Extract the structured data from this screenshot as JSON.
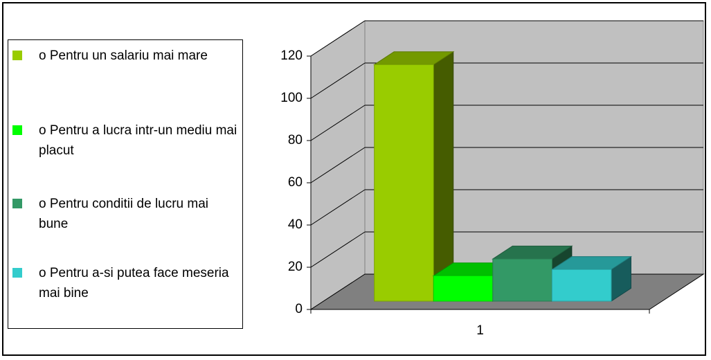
{
  "chart_data": {
    "type": "bar3d",
    "categories": [
      "1"
    ],
    "series": [
      {
        "name": "o Pentru un salariu mai mare",
        "color": "#99cc00",
        "values": [
          112
        ]
      },
      {
        "name": "o Pentru a lucra intr-un mediu mai placut",
        "color": "#00ff00",
        "values": [
          12
        ]
      },
      {
        "name": "o Pentru conditii de lucru mai bune",
        "color": "#339966",
        "values": [
          20
        ]
      },
      {
        "name": "o Pentru a-si putea face meseria mai bine",
        "color": "#33cccc",
        "values": [
          15
        ]
      }
    ],
    "ylim": [
      0,
      120
    ],
    "yticks": [
      0,
      20,
      40,
      60,
      80,
      100,
      120
    ],
    "grid": true,
    "legend": "left"
  }
}
